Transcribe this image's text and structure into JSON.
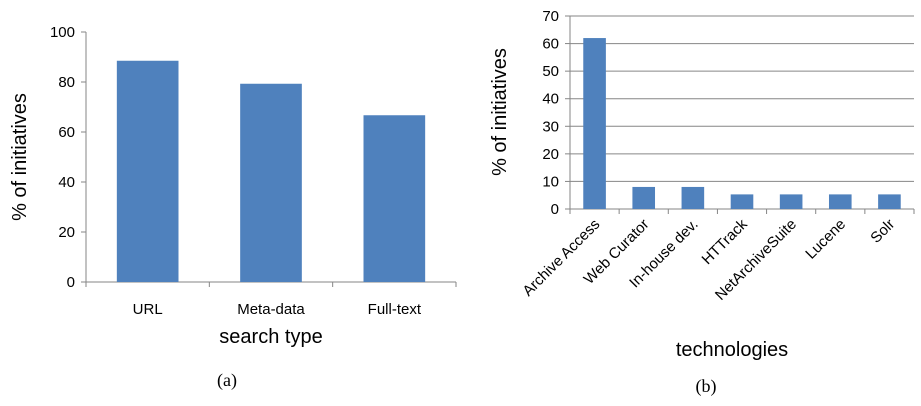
{
  "chart_data": [
    {
      "type": "bar",
      "categories": [
        "URL",
        "Meta-data",
        "Full-text"
      ],
      "values": [
        88.5,
        79.3,
        66.7
      ],
      "xlabel": "search type",
      "ylabel": "% of initiatives",
      "ylim": [
        0,
        100
      ],
      "yticks": [
        "0",
        "20",
        "40",
        "60",
        "80",
        "100"
      ],
      "grid": false,
      "legend": "none",
      "bar_color": "#4f81bd",
      "caption": "(a)"
    },
    {
      "type": "bar",
      "categories": [
        "Archive Access",
        "Web Curator",
        "In-house dev.",
        "HTTrack",
        "NetArchiveSuite",
        "Lucene",
        "Solr"
      ],
      "values": [
        62,
        8,
        8,
        5.3,
        5.3,
        5.3,
        5.3
      ],
      "xlabel": "technologies",
      "ylabel": "% of initiatives",
      "ylim": [
        0,
        70
      ],
      "yticks": [
        "0",
        "10",
        "20",
        "30",
        "40",
        "50",
        "60",
        "70"
      ],
      "grid": true,
      "legend": "none",
      "bar_color": "#4f81bd",
      "caption": "(b)"
    }
  ]
}
